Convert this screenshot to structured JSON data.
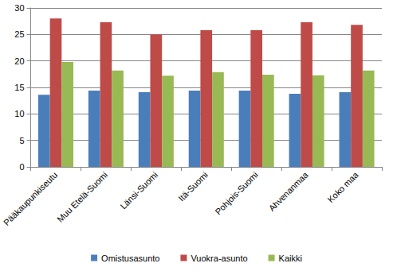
{
  "chart_data": {
    "type": "bar",
    "categories": [
      "Pääkaupunkiseutu",
      "Muu Etelä-Suomi",
      "Länsi-Suomi",
      "Itä-Suomi",
      "Pohjois-Suomi",
      "Ahvenanmaa",
      "Koko maa"
    ],
    "series": [
      {
        "name": "Omistusasunto",
        "color": "#4a7ebb",
        "values": [
          13.6,
          14.4,
          14.1,
          14.4,
          14.4,
          13.8,
          14.1
        ]
      },
      {
        "name": "Vuokra-asunto",
        "color": "#be4b48",
        "values": [
          28.0,
          27.3,
          25.0,
          25.8,
          25.8,
          27.3,
          26.8
        ]
      },
      {
        "name": "Kaikki",
        "color": "#98b954",
        "values": [
          19.8,
          18.2,
          17.2,
          17.9,
          17.4,
          17.3,
          18.2
        ]
      }
    ],
    "ylim": [
      0,
      30
    ],
    "yticks": [
      0,
      5,
      10,
      15,
      20,
      25,
      30
    ],
    "grid": true,
    "legend": "bottom"
  }
}
